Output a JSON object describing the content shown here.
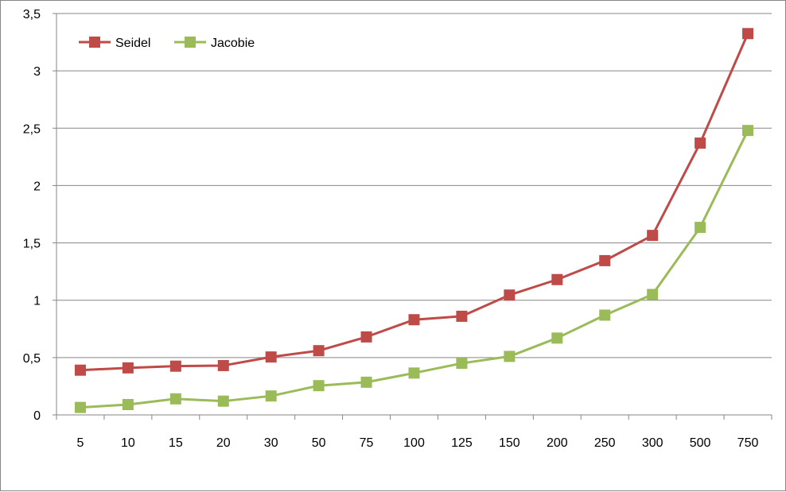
{
  "chart_data": {
    "type": "line",
    "title": "",
    "xlabel": "",
    "ylabel": "",
    "categories": [
      "5",
      "10",
      "15",
      "20",
      "30",
      "50",
      "75",
      "100",
      "125",
      "150",
      "200",
      "250",
      "300",
      "500",
      "750"
    ],
    "ylim": [
      0,
      3.5
    ],
    "ytick_step": 0.5,
    "ytick_labels": [
      "0",
      "0,5",
      "1",
      "1,5",
      "2",
      "2,5",
      "3",
      "3,5"
    ],
    "grid": true,
    "legend_position": "top-left",
    "series": [
      {
        "name": "Seidel",
        "color": "#BE4B48",
        "marker": "square",
        "values": [
          0.39,
          0.41,
          0.425,
          0.43,
          0.505,
          0.56,
          0.68,
          0.83,
          0.86,
          1.045,
          1.18,
          1.345,
          1.565,
          2.37,
          3.325
        ]
      },
      {
        "name": "Jacobie",
        "color": "#9BBB59",
        "marker": "square",
        "values": [
          0.065,
          0.09,
          0.14,
          0.12,
          0.165,
          0.255,
          0.285,
          0.365,
          0.45,
          0.51,
          0.67,
          0.87,
          1.05,
          1.635,
          2.48
        ]
      }
    ]
  }
}
